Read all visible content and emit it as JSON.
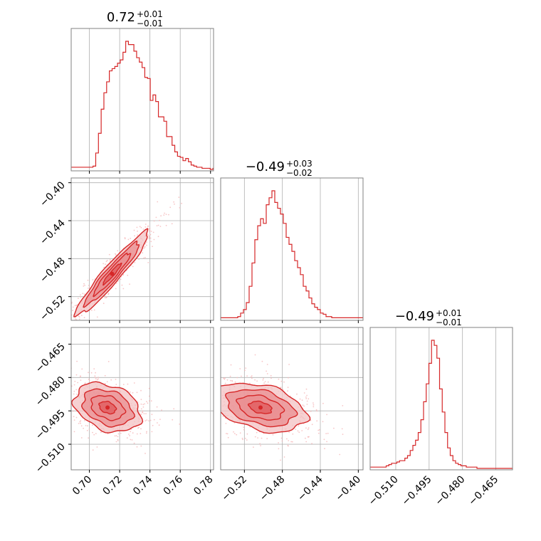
{
  "colors": {
    "main": "#d62728",
    "fill_outer": "#f3c2c3",
    "fill_inner": "#ea8e90",
    "fill_core": "#e05a5c",
    "grid": "#b0b0b0",
    "frame": "#808080",
    "scatter": "#f5b8b9"
  },
  "chart_data": {
    "type": "corner",
    "grid": true,
    "parameters": [
      {
        "title": {
          "value": "0.72",
          "plus": "+0.01",
          "minus": "−0.01"
        },
        "range": [
          0.688,
          0.782
        ],
        "ticks": [
          0.7,
          0.72,
          0.74,
          0.76,
          0.78
        ],
        "tick_labels": [
          "0.70",
          "0.72",
          "0.74",
          "0.76",
          "0.78"
        ]
      },
      {
        "title": {
          "value": "−0.49",
          "plus": "+0.03",
          "minus": "−0.02"
        },
        "range": [
          -0.545,
          -0.395
        ],
        "ticks": [
          -0.52,
          -0.48,
          -0.44,
          -0.4
        ],
        "tick_labels": [
          "−0.52",
          "−0.48",
          "−0.44",
          "−0.40"
        ]
      },
      {
        "title": {
          "value": "−0.49",
          "plus": "+0.01",
          "minus": "−0.01"
        },
        "range": [
          -0.5215,
          -0.4575
        ],
        "ticks": [
          -0.51,
          -0.495,
          -0.48,
          -0.465
        ],
        "tick_labels": [
          "−0.510",
          "−0.495",
          "−0.480",
          "−0.465"
        ]
      }
    ],
    "histograms": [
      {
        "start": 0.688,
        "bin": 0.0018,
        "counts": [
          2,
          2,
          2,
          2,
          2,
          2,
          2,
          2,
          3,
          15,
          33,
          55,
          70,
          80,
          90,
          92,
          94,
          97,
          100,
          107,
          117,
          114,
          114,
          108,
          102,
          98,
          93,
          84,
          83,
          63,
          68,
          62,
          48,
          48,
          44,
          30,
          30,
          22,
          16,
          12,
          11,
          8,
          10,
          7,
          4,
          3,
          2,
          2,
          1,
          1,
          1,
          0,
          1
        ]
      },
      {
        "start": -0.545,
        "bin": 0.003,
        "counts": [
          1,
          1,
          1,
          1,
          1,
          1,
          2,
          5,
          8,
          14,
          28,
          48,
          68,
          80,
          86,
          82,
          98,
          104,
          110,
          100,
          95,
          90,
          82,
          70,
          64,
          58,
          50,
          44,
          38,
          28,
          24,
          18,
          13,
          10,
          8,
          5,
          4,
          2,
          2,
          1,
          1,
          1,
          1,
          1,
          1,
          1,
          1,
          1,
          1,
          1
        ]
      },
      {
        "start": -0.5215,
        "bin": 0.0012,
        "counts": [
          1,
          1,
          1,
          1,
          1,
          1,
          2,
          3,
          4,
          4,
          5,
          6,
          6,
          8,
          10,
          14,
          18,
          22,
          28,
          38,
          52,
          66,
          82,
          100,
          96,
          86,
          62,
          44,
          28,
          16,
          10,
          6,
          4,
          3,
          2,
          2,
          1,
          1,
          1,
          1,
          0,
          0,
          0,
          0,
          0,
          0,
          0,
          0,
          0,
          0,
          0,
          0,
          0,
          0
        ]
      }
    ],
    "pairs": [
      {
        "x": 0,
        "y": 1,
        "mean": [
          0.715,
          -0.496
        ],
        "sd": [
          0.012,
          0.022
        ],
        "rho": 0.95
      },
      {
        "x": 0,
        "y": 2,
        "mean": [
          0.712,
          -0.4935
        ],
        "sd": [
          0.011,
          0.0055
        ],
        "rho": -0.3
      },
      {
        "x": 1,
        "y": 2,
        "mean": [
          -0.503,
          -0.4935
        ],
        "sd": [
          0.024,
          0.0055
        ],
        "rho": -0.35
      }
    ]
  }
}
